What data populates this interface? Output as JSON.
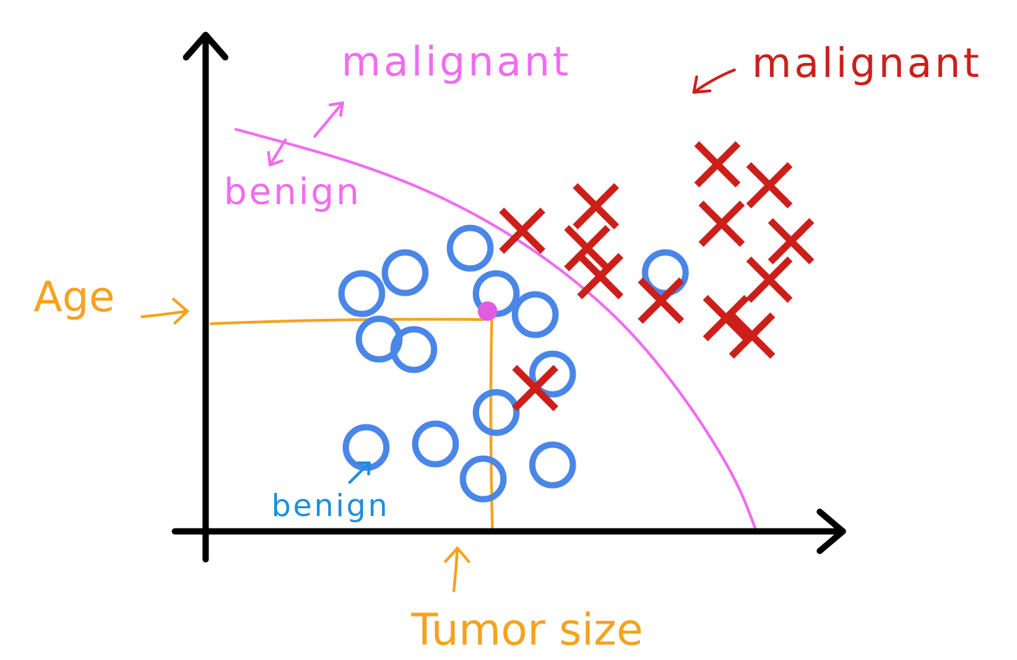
{
  "chart_data": {
    "type": "scatter",
    "xlabel": "Tumor size",
    "ylabel": "Age",
    "annotations": {
      "region_upper": "malignant",
      "region_lower": "benign",
      "cluster_malignant": "malignant",
      "cluster_benign": "benign"
    },
    "series": [
      {
        "marker": "circle",
        "color": "#4a86e8",
        "points": [
          [
            4.6,
            7.4
          ],
          [
            6.1,
            8.1
          ],
          [
            3.6,
            6.8
          ],
          [
            6.7,
            6.8
          ],
          [
            4.0,
            5.5
          ],
          [
            4.8,
            5.2
          ],
          [
            7.6,
            6.2
          ],
          [
            6.7,
            3.4
          ],
          [
            3.7,
            2.4
          ],
          [
            5.3,
            2.5
          ],
          [
            8.0,
            4.5
          ],
          [
            6.4,
            1.5
          ],
          [
            8.0,
            1.9
          ],
          [
            10.6,
            7.4
          ]
        ]
      },
      {
        "marker": "x",
        "color": "#cc1f1a",
        "points": [
          [
            7.3,
            8.6
          ],
          [
            9.0,
            9.3
          ],
          [
            11.8,
            10.5
          ],
          [
            8.8,
            8.1
          ],
          [
            11.9,
            8.8
          ],
          [
            13.0,
            9.9
          ],
          [
            9.1,
            7.3
          ],
          [
            13.5,
            8.3
          ],
          [
            10.5,
            6.6
          ],
          [
            12.0,
            6.1
          ],
          [
            13.0,
            7.2
          ],
          [
            12.6,
            5.6
          ],
          [
            7.6,
            4.1
          ]
        ]
      }
    ],
    "highlighted_point": {
      "color": "#e05ce0",
      "x": 6.5,
      "y": 6.3
    },
    "decision_boundary": {
      "color": "#f06cf0",
      "points": [
        [
          0.7,
          11.5
        ],
        [
          2.2,
          11.0
        ],
        [
          3.8,
          10.4
        ],
        [
          5.4,
          9.6
        ],
        [
          6.9,
          8.6
        ],
        [
          8.3,
          7.4
        ],
        [
          9.6,
          6.0
        ],
        [
          10.7,
          4.4
        ],
        [
          11.6,
          2.8
        ],
        [
          12.3,
          1.3
        ],
        [
          12.7,
          0.0
        ]
      ]
    },
    "guide_color": "#f5a21f",
    "axis_color": "#000000",
    "xlim": [
      0,
      16
    ],
    "ylim": [
      0,
      13
    ],
    "grid": false,
    "legend": "none"
  }
}
